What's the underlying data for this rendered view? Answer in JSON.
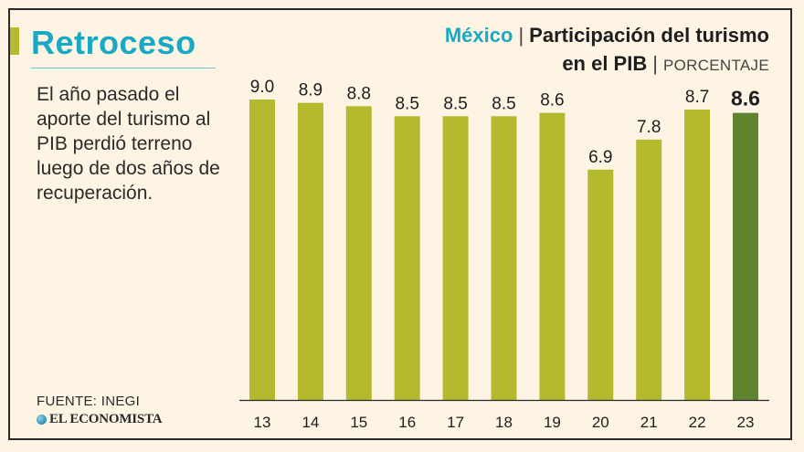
{
  "header": {
    "headline": "Retroceso",
    "description": "El año pasado el aporte del turismo al PIB perdió terreno luego de dos años de recuperación."
  },
  "chart_title": {
    "country": "México",
    "line1": "Participación del turismo",
    "line2": "en el PIB",
    "unit": "PORCENTAJE"
  },
  "footer": {
    "source": "FUENTE: INEGI",
    "brand": "EL ECONOMISTA"
  },
  "colors": {
    "bar": "#b5b92e",
    "highlight": "#5f8430",
    "axis": "#2a2a2a",
    "headline": "#1aa9c4"
  },
  "chart_data": {
    "type": "bar",
    "title": "México | Participación del turismo en el PIB | PORCENTAJE",
    "categories": [
      "13",
      "14",
      "15",
      "16",
      "17",
      "18",
      "19",
      "20",
      "21",
      "22",
      "23"
    ],
    "values": [
      9.0,
      8.9,
      8.8,
      8.5,
      8.5,
      8.5,
      8.6,
      6.9,
      7.8,
      8.7,
      8.6
    ],
    "value_labels": [
      "9.0",
      "8.9",
      "8.8",
      "8.5",
      "8.5",
      "8.5",
      "8.6",
      "6.9",
      "7.8",
      "8.7",
      "8.6"
    ],
    "highlight_index": 10,
    "xlabel": "",
    "ylabel": "",
    "ylim": [
      0,
      9.0
    ],
    "grid": false
  }
}
